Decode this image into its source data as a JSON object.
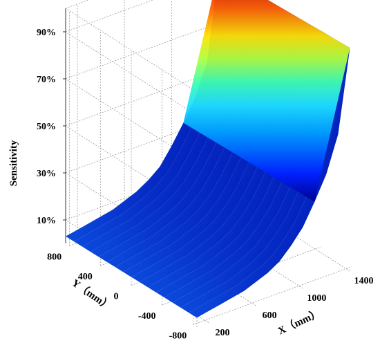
{
  "chart_data": {
    "type": "surface",
    "title": "",
    "xlabel": "X（mm）",
    "ylabel": "Y（mm）",
    "zlabel": "Sensitivity",
    "x_ticks": [
      "200",
      "600",
      "1000",
      "1400"
    ],
    "y_ticks": [
      "-800",
      "-400",
      "0",
      "400",
      "800"
    ],
    "z_ticks": [
      "10%",
      "30%",
      "50%",
      "70%",
      "90%"
    ],
    "xlim": [
      100,
      1450
    ],
    "ylim": [
      -850,
      850
    ],
    "zlim": [
      0,
      1
    ],
    "colormap": "jet",
    "grid": true,
    "surface_profile": {
      "x": [
        100,
        200,
        300,
        400,
        500,
        600,
        700,
        800,
        900,
        1000,
        1100,
        1200,
        1300,
        1400
      ],
      "sensitivity_at_low_y": [
        0.04,
        0.05,
        0.06,
        0.07,
        0.08,
        0.1,
        0.12,
        0.15,
        0.2,
        0.26,
        0.35,
        0.45,
        0.6,
        0.95
      ],
      "sensitivity_at_high_y": [
        0.03,
        0.04,
        0.05,
        0.06,
        0.07,
        0.09,
        0.11,
        0.14,
        0.18,
        0.25,
        0.33,
        0.42,
        0.55,
        0.92
      ]
    }
  }
}
